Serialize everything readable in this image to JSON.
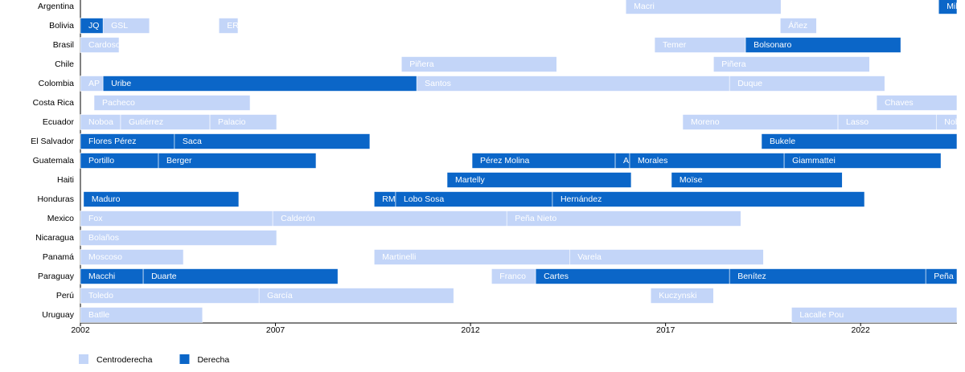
{
  "chart_data": {
    "type": "timeline",
    "categories": [
      "Argentina",
      "Bolivia",
      "Brasil",
      "Chile",
      "Colombia",
      "Costa Rica",
      "Ecuador",
      "El Salvador",
      "Guatemala",
      "Haiti",
      "Honduras",
      "Mexico",
      "Nicaragua",
      "Panamá",
      "Paraguay",
      "Perú",
      "Uruguay"
    ],
    "xlim": [
      2002,
      2024.47
    ],
    "xticks": [
      2002,
      2007,
      2012,
      2017,
      2022
    ],
    "series": [
      {
        "name": "Centroderecha",
        "color": "#c3d5f8",
        "segments": [
          {
            "category": "Argentina",
            "label": "Macri",
            "start": 2015.98,
            "end": 2019.96
          },
          {
            "category": "Bolivia",
            "label": "GSL",
            "start": 2002.58,
            "end": 2003.77
          },
          {
            "category": "Bolivia",
            "label": "ER",
            "start": 2005.55,
            "end": 2006.04
          },
          {
            "category": "Bolivia",
            "label": "Áñez",
            "start": 2019.94,
            "end": 2020.87
          },
          {
            "category": "Brasil",
            "label": "Cardoso",
            "start": 2002,
            "end": 2002.99
          },
          {
            "category": "Brasil",
            "label": "Temer",
            "start": 2016.72,
            "end": 2019.05
          },
          {
            "category": "Chile",
            "label": "Piñera",
            "start": 2010.23,
            "end": 2014.21
          },
          {
            "category": "Chile",
            "label": "Piñera",
            "start": 2018.23,
            "end": 2022.23
          },
          {
            "category": "Colombia",
            "label": "AP",
            "start": 2002,
            "end": 2002.58
          },
          {
            "category": "Colombia",
            "label": "Santos",
            "start": 2010.62,
            "end": 2018.64
          },
          {
            "category": "Colombia",
            "label": "Duque",
            "start": 2018.64,
            "end": 2022.62
          },
          {
            "category": "Costa Rica",
            "label": "Pacheco",
            "start": 2002.35,
            "end": 2006.35
          },
          {
            "category": "Costa Rica",
            "label": "Chaves",
            "start": 2022.41,
            "end": 2024.47
          },
          {
            "category": "Ecuador",
            "label": "Noboa",
            "start": 2002,
            "end": 2003.03
          },
          {
            "category": "Ecuador",
            "label": "Gutiérrez",
            "start": 2003.03,
            "end": 2005.32
          },
          {
            "category": "Ecuador",
            "label": "Palacio",
            "start": 2005.32,
            "end": 2007.03
          },
          {
            "category": "Ecuador",
            "label": "Moreno",
            "start": 2017.44,
            "end": 2021.42
          },
          {
            "category": "Ecuador",
            "label": "Lasso",
            "start": 2021.42,
            "end": 2023.94
          },
          {
            "category": "Ecuador",
            "label": "Noboa",
            "start": 2023.94,
            "end": 2024.47
          },
          {
            "category": "Mexico",
            "label": "Fox",
            "start": 2002,
            "end": 2006.93
          },
          {
            "category": "Mexico",
            "label": "Calderón",
            "start": 2006.93,
            "end": 2012.93
          },
          {
            "category": "Mexico",
            "label": "Peña Nieto",
            "start": 2012.93,
            "end": 2018.93
          },
          {
            "category": "Nicaragua",
            "label": "Bolaños",
            "start": 2002,
            "end": 2007.03
          },
          {
            "category": "Panamá",
            "label": "Moscoso",
            "start": 2002,
            "end": 2004.64
          },
          {
            "category": "Panamá",
            "label": "Martinelli",
            "start": 2009.53,
            "end": 2014.54
          },
          {
            "category": "Panamá",
            "label": "Varela",
            "start": 2014.54,
            "end": 2019.51
          },
          {
            "category": "Paraguay",
            "label": "Franco",
            "start": 2012.54,
            "end": 2013.67
          },
          {
            "category": "Perú",
            "label": "Toledo",
            "start": 2002,
            "end": 2006.58
          },
          {
            "category": "Perú",
            "label": "García",
            "start": 2006.58,
            "end": 2011.57
          },
          {
            "category": "Perú",
            "label": "Kuczynski",
            "start": 2016.62,
            "end": 2018.23
          },
          {
            "category": "Uruguay",
            "label": "Batlle",
            "start": 2002,
            "end": 2005.13
          },
          {
            "category": "Uruguay",
            "label": "Lacalle Pou",
            "start": 2020.23,
            "end": 2024.47
          }
        ]
      },
      {
        "name": "Derecha",
        "color": "#0b66c8",
        "segments": [
          {
            "category": "Argentina",
            "label": "Milei",
            "start": 2024.0,
            "end": 2024.47
          },
          {
            "category": "Bolivia",
            "label": "JQ",
            "start": 2002,
            "end": 2002.58
          },
          {
            "category": "Brasil",
            "label": "Bolsonaro",
            "start": 2019.05,
            "end": 2023.03
          },
          {
            "category": "Colombia",
            "label": "Uribe",
            "start": 2002.58,
            "end": 2010.62
          },
          {
            "category": "El Salvador",
            "label": "Flores Pérez",
            "start": 2002,
            "end": 2004.41
          },
          {
            "category": "El Salvador",
            "label": "Saca",
            "start": 2004.41,
            "end": 2009.42
          },
          {
            "category": "El Salvador",
            "label": "Bukele",
            "start": 2019.46,
            "end": 2024.47
          },
          {
            "category": "Guatemala",
            "label": "Portillo",
            "start": 2002,
            "end": 2004.0
          },
          {
            "category": "Guatemala",
            "label": "Berger",
            "start": 2004.0,
            "end": 2008.04
          },
          {
            "category": "Guatemala",
            "label": "Pérez Molina",
            "start": 2012.04,
            "end": 2015.71
          },
          {
            "category": "Guatemala",
            "label": "AM",
            "start": 2015.71,
            "end": 2016.08
          },
          {
            "category": "Guatemala",
            "label": "Morales",
            "start": 2016.08,
            "end": 2020.04
          },
          {
            "category": "Guatemala",
            "label": "Giammattei",
            "start": 2020.04,
            "end": 2024.06
          },
          {
            "category": "Haiti",
            "label": "Martelly",
            "start": 2011.4,
            "end": 2016.12
          },
          {
            "category": "Haiti",
            "label": "Moïse",
            "start": 2017.15,
            "end": 2021.53
          },
          {
            "category": "Honduras",
            "label": "Maduro",
            "start": 2002.08,
            "end": 2006.06
          },
          {
            "category": "Honduras",
            "label": "RM",
            "start": 2009.53,
            "end": 2010.08
          },
          {
            "category": "Honduras",
            "label": "Lobo Sosa",
            "start": 2010.08,
            "end": 2014.1
          },
          {
            "category": "Honduras",
            "label": "Hernández",
            "start": 2014.1,
            "end": 2022.1
          },
          {
            "category": "Paraguay",
            "label": "Macchi",
            "start": 2002,
            "end": 2003.61
          },
          {
            "category": "Paraguay",
            "label": "Duarte",
            "start": 2003.61,
            "end": 2008.6
          },
          {
            "category": "Paraguay",
            "label": "Cartes",
            "start": 2013.67,
            "end": 2018.64
          },
          {
            "category": "Paraguay",
            "label": "Benítez",
            "start": 2018.64,
            "end": 2023.67
          },
          {
            "category": "Paraguay",
            "label": "Peña",
            "start": 2023.67,
            "end": 2024.47
          }
        ]
      }
    ]
  }
}
